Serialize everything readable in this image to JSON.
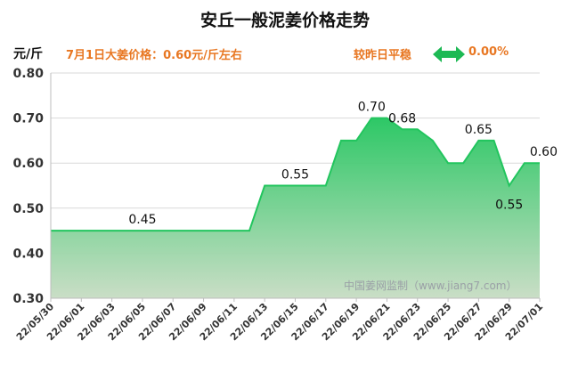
{
  "page": {
    "title": "安丘一般泥姜价格走势",
    "unit": "元/斤",
    "note": "7月1日大姜价格：0.60元/斤左右",
    "compare_text": "较昨日平稳",
    "compare_change": "0.00%",
    "watermark": "中国姜网监制（www.jiang7.com）",
    "arrow_icon": "double-arrow-icon"
  },
  "colors": {
    "title": "#111111",
    "accent_orange": "#e87722",
    "arrow_green": "#1db954",
    "line_green": "#22c55e",
    "fill_top": "#22c55e",
    "fill_bottom": "#c7dcc3",
    "grid": "#d9d9d9",
    "watermark": "#9aa0a6"
  },
  "chart_data": {
    "type": "area",
    "ylabel": "元/斤",
    "ylim": [
      0.3,
      0.8
    ],
    "yticks": [
      "0.30",
      "0.40",
      "0.50",
      "0.60",
      "0.70",
      "0.80"
    ],
    "grid": "horizontal",
    "xtick_labels": [
      "22/05/30",
      "22/06/01",
      "22/06/03",
      "22/06/05",
      "22/06/07",
      "22/06/09",
      "22/06/11",
      "22/06/13",
      "22/06/15",
      "22/06/17",
      "22/06/19",
      "22/06/21",
      "22/06/23",
      "22/06/25",
      "22/06/27",
      "22/06/29",
      "22/07/01"
    ],
    "x": [
      "22/05/30",
      "22/05/31",
      "22/06/01",
      "22/06/02",
      "22/06/03",
      "22/06/04",
      "22/06/05",
      "22/06/06",
      "22/06/07",
      "22/06/08",
      "22/06/09",
      "22/06/10",
      "22/06/11",
      "22/06/12",
      "22/06/13",
      "22/06/14",
      "22/06/15",
      "22/06/16",
      "22/06/17",
      "22/06/18",
      "22/06/19",
      "22/06/20",
      "22/06/21",
      "22/06/22",
      "22/06/23",
      "22/06/24",
      "22/06/25",
      "22/06/26",
      "22/06/27",
      "22/06/28",
      "22/06/29",
      "22/06/30",
      "22/07/01"
    ],
    "values": [
      0.45,
      0.45,
      0.45,
      0.45,
      0.45,
      0.45,
      0.45,
      0.45,
      0.45,
      0.45,
      0.45,
      0.45,
      0.45,
      0.45,
      0.55,
      0.55,
      0.55,
      0.55,
      0.55,
      0.65,
      0.65,
      0.7,
      0.7,
      0.675,
      0.675,
      0.65,
      0.6,
      0.6,
      0.65,
      0.65,
      0.55,
      0.6,
      0.6
    ],
    "annotations": [
      {
        "x": "22/06/05",
        "value": 0.45,
        "label": "0.45"
      },
      {
        "x": "22/06/15",
        "value": 0.55,
        "label": "0.55"
      },
      {
        "x": "22/06/20",
        "value": 0.7,
        "label": "0.70"
      },
      {
        "x": "22/06/22",
        "value": 0.675,
        "label": "0.68"
      },
      {
        "x": "22/06/27",
        "value": 0.65,
        "label": "0.65"
      },
      {
        "x": "22/06/29",
        "value": 0.55,
        "label": "0.55"
      },
      {
        "x": "22/07/01",
        "value": 0.6,
        "label": "0.60"
      }
    ]
  }
}
